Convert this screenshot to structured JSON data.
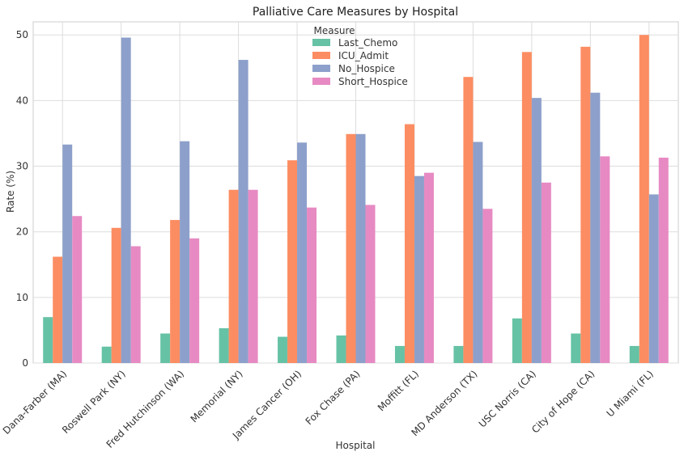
{
  "chart_data": {
    "type": "bar",
    "title": "Palliative Care Measures by Hospital",
    "xlabel": "Hospital",
    "ylabel": "Rate (%)",
    "ylim": [
      0,
      52
    ],
    "yticks": [
      0,
      10,
      20,
      30,
      40,
      50
    ],
    "grid": true,
    "legend_title": "Measure",
    "legend_position": "top-center",
    "categories": [
      "Dana-Farber (MA)",
      "Roswell Park (NY)",
      "Fred Hutchinson (WA)",
      "Memorial (NY)",
      "James Cancer (OH)",
      "Fox Chase (PA)",
      "Moffitt (FL)",
      "MD Anderson (TX)",
      "USC Norris (CA)",
      "City of Hope (CA)",
      "U Miami (FL)"
    ],
    "series": [
      {
        "name": "Last_Chemo",
        "color": "#66c2a5",
        "values": [
          7.0,
          2.5,
          4.5,
          5.3,
          4.0,
          4.2,
          2.6,
          2.6,
          6.8,
          4.5,
          2.6
        ]
      },
      {
        "name": "ICU_Admit",
        "color": "#fc8d62",
        "values": [
          16.2,
          20.6,
          21.8,
          26.4,
          30.9,
          34.9,
          36.4,
          43.6,
          47.4,
          48.2,
          50.0
        ]
      },
      {
        "name": "No_Hospice",
        "color": "#8da0cb",
        "values": [
          33.3,
          49.6,
          33.8,
          46.2,
          33.6,
          34.9,
          28.5,
          33.7,
          40.4,
          41.2,
          25.7
        ]
      },
      {
        "name": "Short_Hospice",
        "color": "#e78ac3",
        "values": [
          22.4,
          17.8,
          19.0,
          26.4,
          23.7,
          24.1,
          29.0,
          23.5,
          27.5,
          31.5,
          31.3
        ]
      }
    ]
  }
}
